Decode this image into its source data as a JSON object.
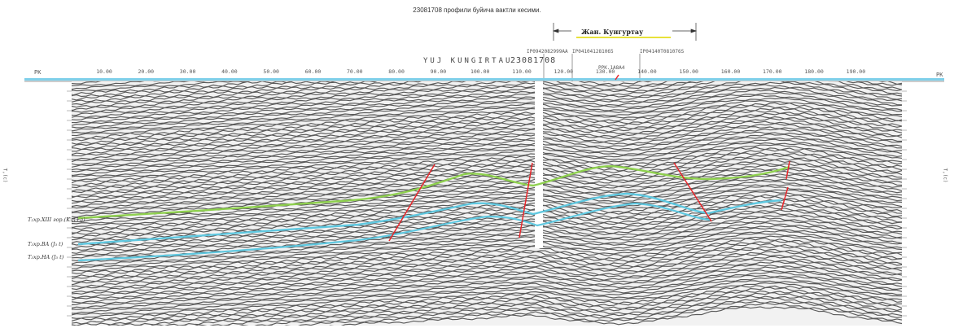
{
  "title": "23081708 профили буйича вактли кесими.",
  "section": {
    "left_label": "YUJ KUNGIRTAU",
    "profile_number": "23081708",
    "block_label": "Жан. Кунгуртау",
    "pk_label": "PK"
  },
  "well_labels": [
    {
      "id": "w1",
      "text": "IP0942082999AA"
    },
    {
      "id": "w2",
      "text": "IP041041281065"
    },
    {
      "id": "w3",
      "text": "IP04140T081076S"
    },
    {
      "id": "w4",
      "text": "PPK.1A8A4"
    }
  ],
  "pk_ticks": [
    "10.00",
    "20.00",
    "30.00",
    "40.00",
    "50.00",
    "60.00",
    "70.00",
    "80.00",
    "90.00",
    "100.00",
    "110.00",
    "120.00",
    "130.00",
    "140.00",
    "150.00",
    "160.00",
    "170.00",
    "180.00",
    "190.00"
  ],
  "horizons": [
    {
      "key": "xiii",
      "label": "T₂хр.XIII гор.(K₁n+a)",
      "color": "#8fd14f"
    },
    {
      "key": "ba",
      "label": "T₃хр.BA (J₃ t)",
      "color": "#5fc8e0"
    },
    {
      "key": "na",
      "label": "T₃хр.HA (J₃ t)",
      "color": "#5fc8e0"
    }
  ],
  "colors": {
    "fault": "#e8262b",
    "green_horizon": "#8fd14f",
    "blue_horizon": "#5fc8e0",
    "seismic": "#1e1e1e",
    "header_bar": "#7fd0ea"
  },
  "side_axis": {
    "left": "T,(с)",
    "right": "T,(с)"
  }
}
